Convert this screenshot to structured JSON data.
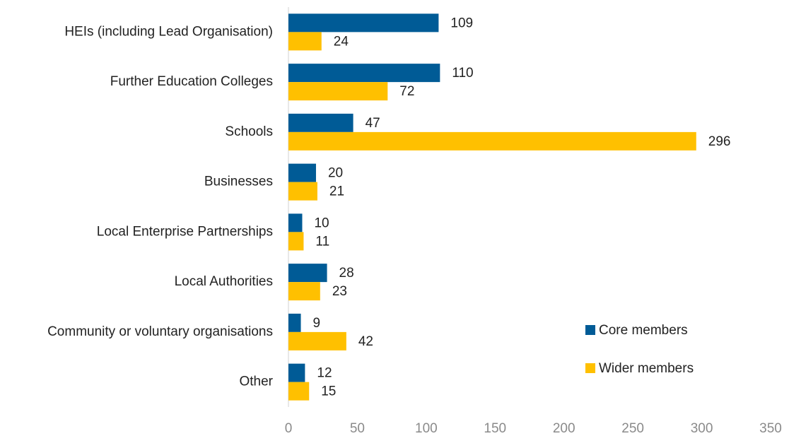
{
  "chart_data": {
    "type": "bar",
    "orientation": "horizontal",
    "categories": [
      "HEIs (including Lead Organisation)",
      "Further Education Colleges",
      "Schools",
      "Businesses",
      "Local Enterprise Partnerships",
      "Local Authorities",
      "Community or voluntary organisations",
      "Other"
    ],
    "series": [
      {
        "name": "Core members",
        "color": "#005b96",
        "values": [
          109,
          110,
          47,
          20,
          10,
          28,
          9,
          12
        ]
      },
      {
        "name": "Wider members",
        "color": "#ffc000",
        "values": [
          24,
          72,
          296,
          21,
          11,
          23,
          42,
          15
        ]
      }
    ],
    "xlim": [
      0,
      350
    ],
    "xticks": [
      0,
      50,
      100,
      150,
      200,
      250,
      300,
      350
    ],
    "grid": false,
    "legend": "lower right",
    "data_labels": true
  }
}
